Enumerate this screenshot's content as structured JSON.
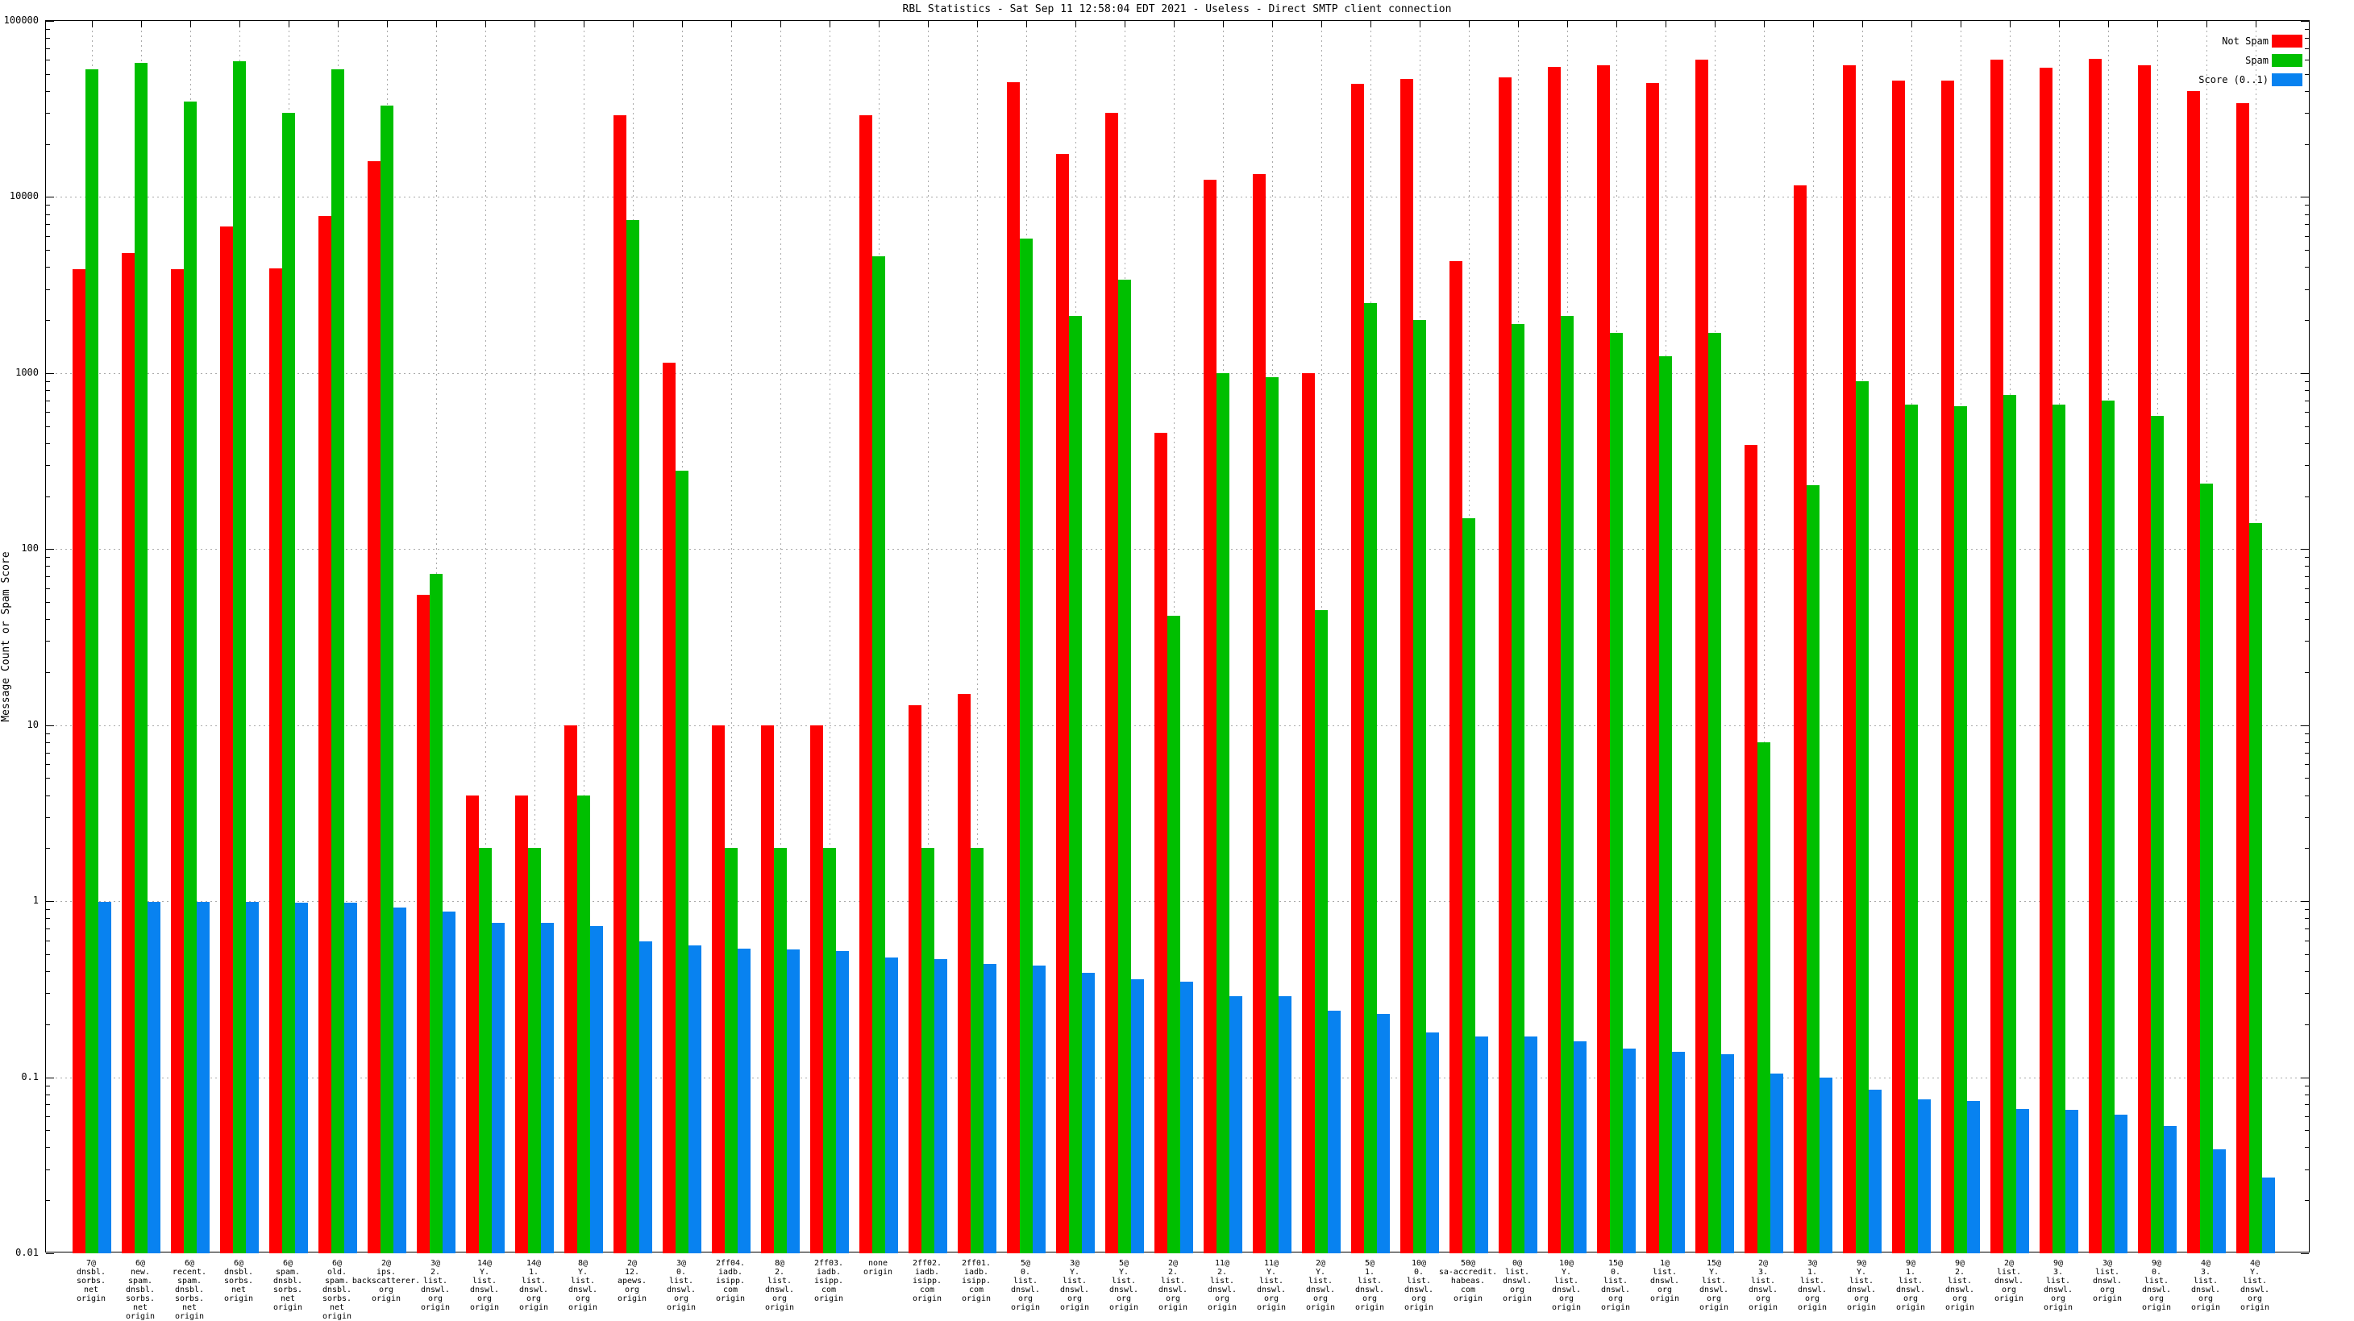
{
  "title": "RBL Statistics - Sat Sep 11 12:58:04 EDT 2021 - Useless - Direct SMTP client connection",
  "chart_data": {
    "type": "bar",
    "title": "RBL Statistics - Sat Sep 11 12:58:04 EDT 2021 - Useless - Direct SMTP client connection",
    "xlabel": "",
    "ylabel": "Message Count or Spam Score",
    "yscale": "log",
    "ylim": [
      0.01,
      100000
    ],
    "ytick_labels": [
      "100000",
      "10000",
      "1000",
      "100",
      "10",
      "1",
      "0.1",
      "0.01"
    ],
    "grid": true,
    "legend_position": "top-right",
    "legend": [
      {
        "label": "Not Spam",
        "color": "#ff0000"
      },
      {
        "label": "Spam",
        "color": "#00bf00"
      },
      {
        "label": "Score (0..1)",
        "color": "#0882f0"
      }
    ],
    "series_names": [
      "not_spam",
      "spam",
      "score"
    ],
    "groups": [
      {
        "label": "7@\ndnsbl.\nsorbs.\nnet\norigin",
        "not_spam": 3900,
        "spam": 53000,
        "score": 0.99
      },
      {
        "label": "6@\nnew.\nspam.\ndnsbl.\nsorbs.\nnet\norigin",
        "not_spam": 4800,
        "spam": 58000,
        "score": 0.99
      },
      {
        "label": "6@\nrecent.\nspam.\ndnsbl.\nsorbs.\nnet\norigin",
        "not_spam": 3900,
        "spam": 35000,
        "score": 0.99
      },
      {
        "label": "6@\ndnsbl.\nsorbs.\nnet\norigin",
        "not_spam": 6800,
        "spam": 59000,
        "score": 0.99
      },
      {
        "label": "6@\nspam.\ndnsbl.\nsorbs.\nnet\norigin",
        "not_spam": 3950,
        "spam": 30000,
        "score": 0.98
      },
      {
        "label": "6@\nold.\nspam.\ndnsbl.\nsorbs.\nnet\norigin",
        "not_spam": 7800,
        "spam": 53000,
        "score": 0.98
      },
      {
        "label": "2@\nips.\nbackscatterer.\norg\norigin",
        "not_spam": 16000,
        "spam": 33000,
        "score": 0.92
      },
      {
        "label": "3@\n2.\nlist.\ndnswl.\norg\norigin",
        "not_spam": 55,
        "spam": 72,
        "score": 0.87
      },
      {
        "label": "14@\nY.\nlist.\ndnswl.\norg\norigin",
        "not_spam": 4,
        "spam": 2,
        "score": 0.75
      },
      {
        "label": "14@\n1.\nlist.\ndnswl.\norg\norigin",
        "not_spam": 4,
        "spam": 2,
        "score": 0.75
      },
      {
        "label": "8@\nY.\nlist.\ndnswl.\norg\norigin",
        "not_spam": 10,
        "spam": 4,
        "score": 0.72
      },
      {
        "label": "2@\n12.\napews.\norg\norigin",
        "not_spam": 29000,
        "spam": 7400,
        "score": 0.59
      },
      {
        "label": "3@\n0.\nlist.\ndnswl.\norg\norigin",
        "not_spam": 1150,
        "spam": 280,
        "score": 0.56
      },
      {
        "label": "2ff04.\niadb.\nisipp.\ncom\norigin",
        "not_spam": 10,
        "spam": 2,
        "score": 0.54
      },
      {
        "label": "8@\n2.\nlist.\ndnswl.\norg\norigin",
        "not_spam": 10,
        "spam": 2,
        "score": 0.53
      },
      {
        "label": "2ff03.\niadb.\nisipp.\ncom\norigin",
        "not_spam": 10,
        "spam": 2,
        "score": 0.52
      },
      {
        "label": "none\norigin",
        "not_spam": 29000,
        "spam": 4600,
        "score": 0.48
      },
      {
        "label": "2ff02.\niadb.\nisipp.\ncom\norigin",
        "not_spam": 13,
        "spam": 2,
        "score": 0.47
      },
      {
        "label": "2ff01.\niadb.\nisipp.\ncom\norigin",
        "not_spam": 15,
        "spam": 2,
        "score": 0.44
      },
      {
        "label": "5@\n0.\nlist.\ndnswl.\norg\norigin",
        "not_spam": 45000,
        "spam": 5800,
        "score": 0.43
      },
      {
        "label": "3@\nY.\nlist.\ndnswl.\norg\norigin",
        "not_spam": 17500,
        "spam": 2100,
        "score": 0.39
      },
      {
        "label": "5@\nY.\nlist.\ndnswl.\norg\norigin",
        "not_spam": 30000,
        "spam": 3400,
        "score": 0.36
      },
      {
        "label": "2@\n2.\nlist.\ndnswl.\norg\norigin",
        "not_spam": 460,
        "spam": 42,
        "score": 0.35
      },
      {
        "label": "11@\n2.\nlist.\ndnswl.\norg\norigin",
        "not_spam": 12500,
        "spam": 1000,
        "score": 0.29
      },
      {
        "label": "11@\nY.\nlist.\ndnswl.\norg\norigin",
        "not_spam": 13500,
        "spam": 950,
        "score": 0.29
      },
      {
        "label": "2@\nY.\nlist.\ndnswl.\norg\norigin",
        "not_spam": 1000,
        "spam": 45,
        "score": 0.24
      },
      {
        "label": "5@\n1.\nlist.\ndnswl.\norg\norigin",
        "not_spam": 44000,
        "spam": 2500,
        "score": 0.23
      },
      {
        "label": "10@\n0.\nlist.\ndnswl.\norg\norigin",
        "not_spam": 47000,
        "spam": 2000,
        "score": 0.18
      },
      {
        "label": "50@\nsa-accredit.\nhabeas.\ncom\norigin",
        "not_spam": 4300,
        "spam": 150,
        "score": 0.17
      },
      {
        "label": "0@\nlist.\ndnswl.\norg\norigin",
        "not_spam": 48000,
        "spam": 1900,
        "score": 0.17
      },
      {
        "label": "10@\nY.\nlist.\ndnswl.\norg\norigin",
        "not_spam": 55000,
        "spam": 2100,
        "score": 0.16
      },
      {
        "label": "15@\n0.\nlist.\ndnswl.\norg\norigin",
        "not_spam": 56000,
        "spam": 1700,
        "score": 0.145
      },
      {
        "label": "1@\nlist.\ndnswl.\norg\norigin",
        "not_spam": 44500,
        "spam": 1250,
        "score": 0.14
      },
      {
        "label": "15@\nY.\nlist.\ndnswl.\norg\norigin",
        "not_spam": 60000,
        "spam": 1700,
        "score": 0.135
      },
      {
        "label": "2@\n3.\nlist.\ndnswl.\norg\norigin",
        "not_spam": 390,
        "spam": 8,
        "score": 0.105
      },
      {
        "label": "3@\n1.\nlist.\ndnswl.\norg\norigin",
        "not_spam": 11700,
        "spam": 230,
        "score": 0.1
      },
      {
        "label": "9@\nY.\nlist.\ndnswl.\norg\norigin",
        "not_spam": 56000,
        "spam": 900,
        "score": 0.085
      },
      {
        "label": "9@\n1.\nlist.\ndnswl.\norg\norigin",
        "not_spam": 46000,
        "spam": 660,
        "score": 0.075
      },
      {
        "label": "9@\n2.\nlist.\ndnswl.\norg\norigin",
        "not_spam": 46000,
        "spam": 650,
        "score": 0.073
      },
      {
        "label": "2@\nlist.\ndnswl.\norg\norigin",
        "not_spam": 60000,
        "spam": 750,
        "score": 0.066
      },
      {
        "label": "9@\n3.\nlist.\ndnswl.\norg\norigin",
        "not_spam": 54000,
        "spam": 660,
        "score": 0.065
      },
      {
        "label": "3@\nlist.\ndnswl.\norg\norigin",
        "not_spam": 61000,
        "spam": 700,
        "score": 0.061
      },
      {
        "label": "9@\n0.\nlist.\ndnswl.\norg\norigin",
        "not_spam": 56000,
        "spam": 570,
        "score": 0.053
      },
      {
        "label": "4@\n3.\nlist.\ndnswl.\norg\norigin",
        "not_spam": 40000,
        "spam": 235,
        "score": 0.039
      },
      {
        "label": "4@\nY.\nlist.\ndnswl.\norg\norigin",
        "not_spam": 34000,
        "spam": 140,
        "score": 0.027
      }
    ]
  }
}
